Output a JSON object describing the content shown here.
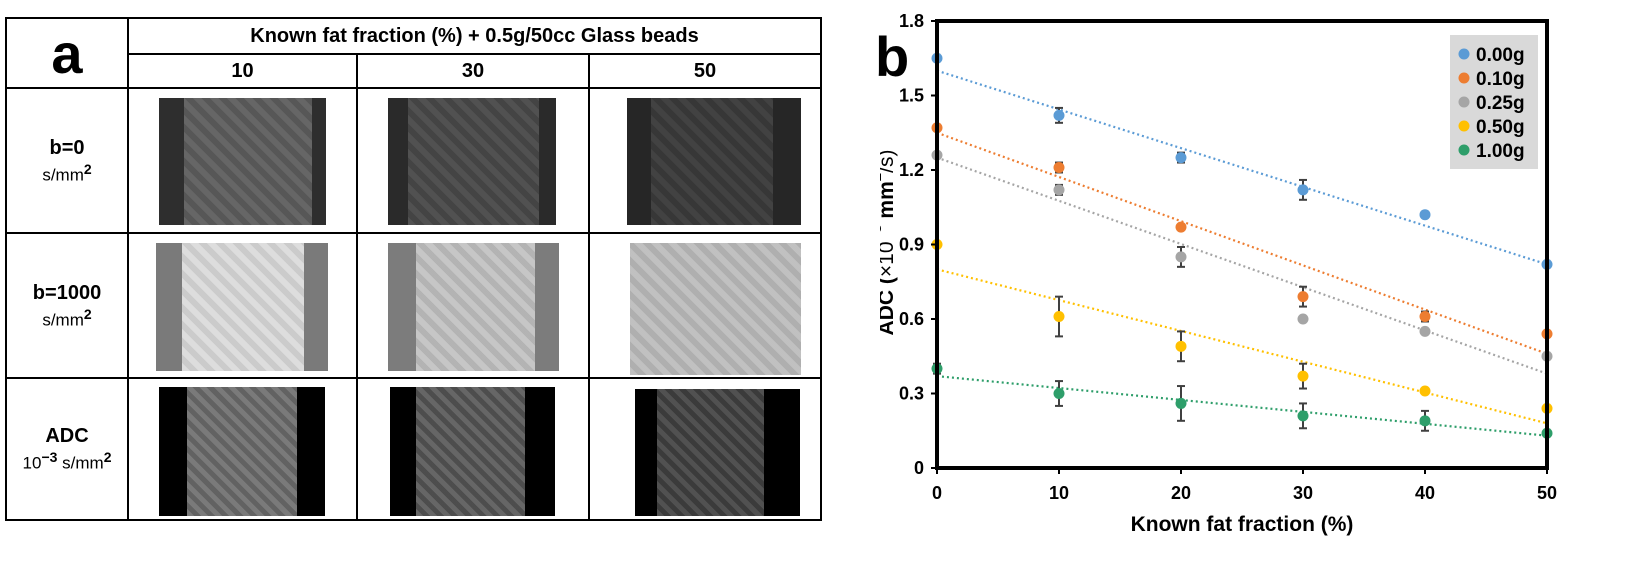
{
  "panel_a": {
    "label": "a",
    "header": "Known fat fraction (%) + 0.5g/50cc Glass beads",
    "columns": [
      "10",
      "30",
      "50"
    ],
    "rows": [
      {
        "name": "b=0",
        "unit": "s/mm",
        "unit_exp": "2"
      },
      {
        "name": "b=1000",
        "unit": "s/mm",
        "unit_exp": "2"
      },
      {
        "name": "ADC",
        "unit_prefix": "10",
        "unit_prefix_exp": "−3",
        "unit": " s/mm",
        "unit_exp": "2"
      }
    ]
  },
  "panel_b": {
    "label": "b"
  },
  "chart_data": {
    "type": "scatter",
    "title": "",
    "xlabel": "Known fat fraction (%)",
    "ylabel_parts": [
      "ADC (",
      "×10",
      "−3",
      " mm",
      "2",
      "/s)"
    ],
    "xlim": [
      0,
      50
    ],
    "ylim": [
      0,
      1.8
    ],
    "xticks": [
      "0",
      "10",
      "20",
      "30",
      "40",
      "50"
    ],
    "yticks": [
      "0",
      "0.3",
      "0.6",
      "0.9",
      "1.2",
      "1.5",
      "1.8"
    ],
    "x": [
      0,
      10,
      20,
      30,
      40,
      50
    ],
    "legend_position": "top-right",
    "series": [
      {
        "name": "0.00g",
        "color": "#5b9bd5",
        "values": [
          1.65,
          1.42,
          1.25,
          1.12,
          1.02,
          0.82
        ],
        "errors": [
          0,
          0.03,
          0.02,
          0.04,
          0,
          0
        ],
        "fit": [
          1.6,
          0.82
        ]
      },
      {
        "name": "0.10g",
        "color": "#ed7d31",
        "values": [
          1.37,
          1.21,
          0.97,
          0.69,
          0.61,
          0.54
        ],
        "errors": [
          0,
          0.02,
          0,
          0.04,
          0.02,
          0
        ],
        "fit": [
          1.35,
          0.46
        ]
      },
      {
        "name": "0.25g",
        "color": "#a5a5a5",
        "values": [
          1.26,
          1.12,
          0.85,
          0.6,
          0.55,
          0.45
        ],
        "errors": [
          0,
          0.02,
          0.04,
          0,
          0,
          0
        ],
        "fit": [
          1.25,
          0.38
        ]
      },
      {
        "name": "0.50g",
        "color": "#ffc000",
        "values": [
          0.9,
          0.61,
          0.49,
          0.37,
          0.31,
          0.24
        ],
        "errors": [
          0,
          0.08,
          0.06,
          0.05,
          0,
          0
        ],
        "fit": [
          0.8,
          0.18
        ]
      },
      {
        "name": "1.00g",
        "color": "#2e9e6a",
        "values": [
          0.4,
          0.3,
          0.26,
          0.21,
          0.19,
          0.14
        ],
        "errors": [
          0.02,
          0.05,
          0.07,
          0.05,
          0.04,
          0
        ],
        "fit": [
          0.37,
          0.13
        ]
      }
    ]
  }
}
